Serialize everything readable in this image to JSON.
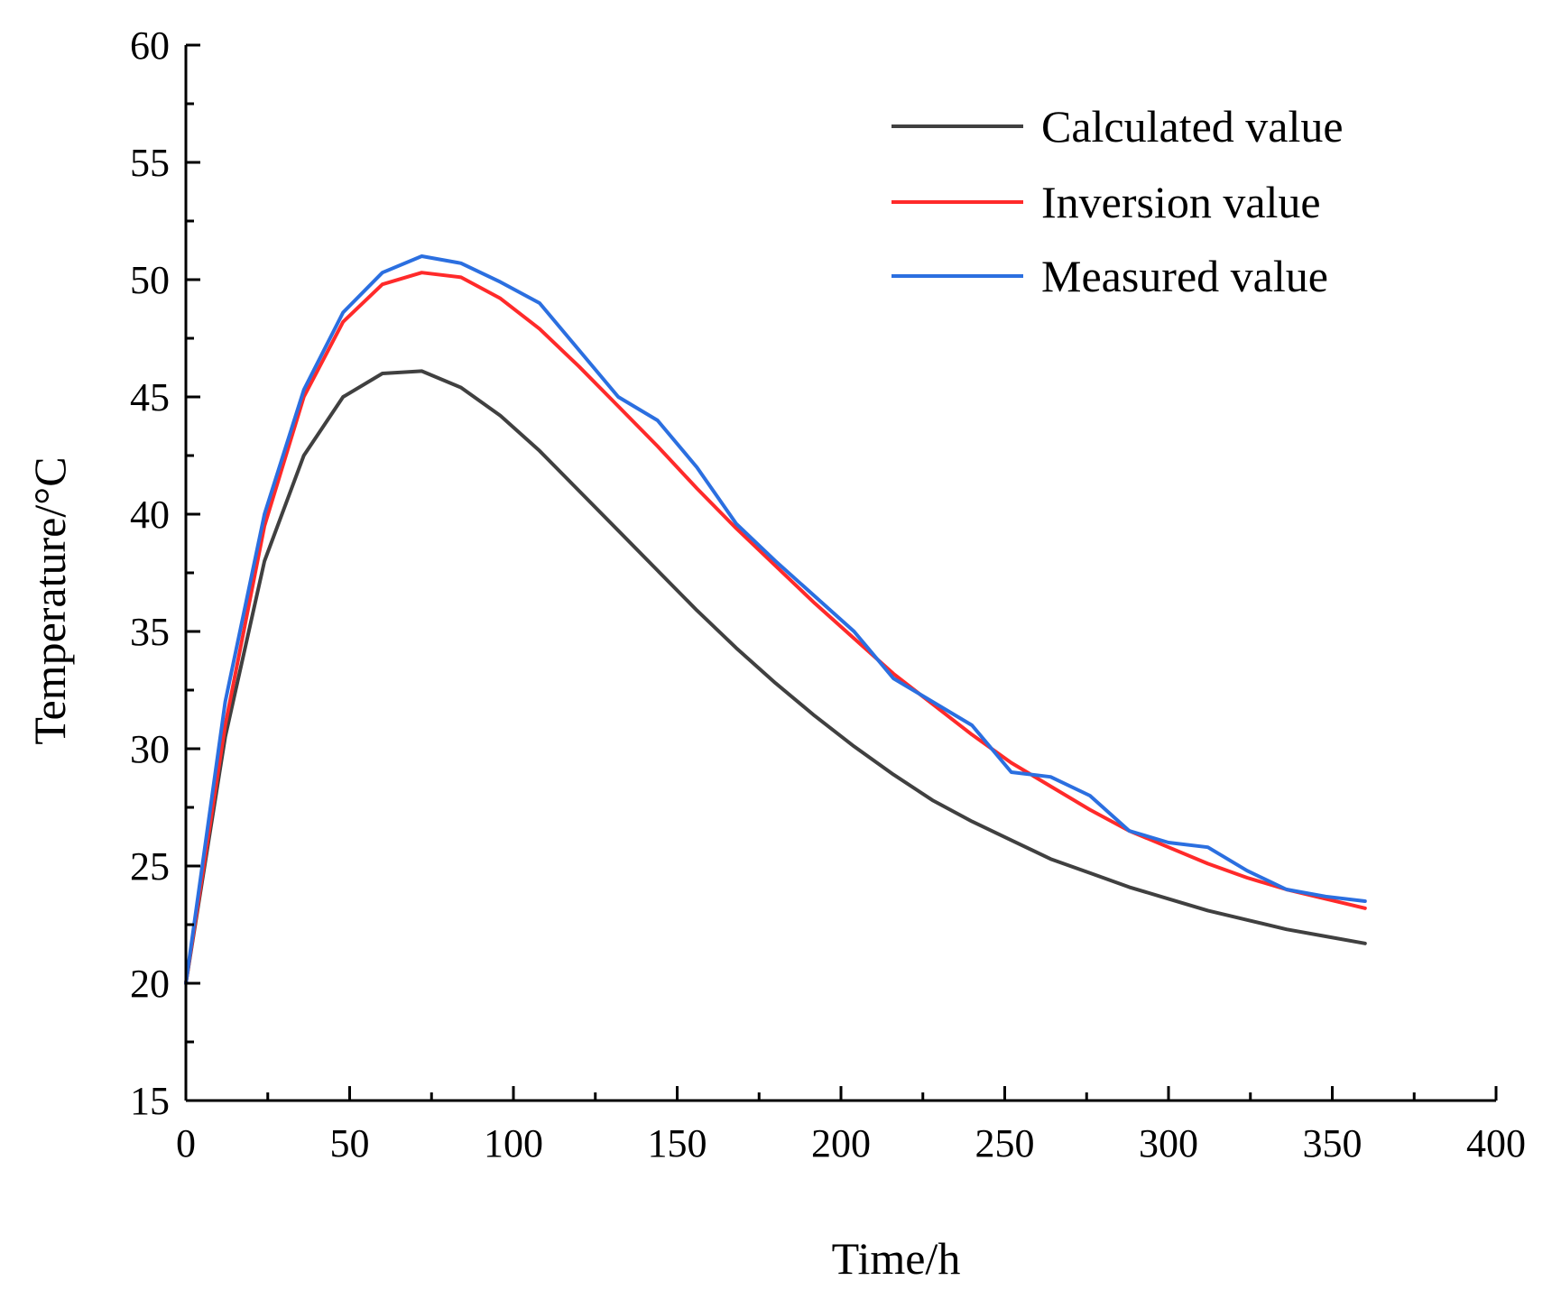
{
  "chart_data": {
    "type": "line",
    "xlabel": "Time/h",
    "ylabel": "Temperature/°C",
    "xlim": [
      0,
      400
    ],
    "ylim": [
      15,
      60
    ],
    "xticks": [
      0,
      50,
      100,
      150,
      200,
      250,
      300,
      350,
      400
    ],
    "yticks": [
      15,
      20,
      25,
      30,
      35,
      40,
      45,
      50,
      55,
      60
    ],
    "x_tick_labels": [
      "0",
      "50",
      "100",
      "150",
      "200",
      "250",
      "300",
      "350",
      "400"
    ],
    "y_tick_labels": [
      "15",
      "20",
      "25",
      "30",
      "35",
      "40",
      "45",
      "50",
      "55",
      "60"
    ],
    "grid": false,
    "legend_position": "top-right",
    "series": [
      {
        "name": "Calculated value",
        "color": "#404040",
        "x": [
          0,
          12,
          24,
          36,
          48,
          60,
          72,
          84,
          96,
          108,
          120,
          132,
          144,
          156,
          168,
          180,
          192,
          204,
          216,
          228,
          240,
          252,
          264,
          276,
          288,
          300,
          312,
          324,
          336,
          348,
          360
        ],
        "y": [
          20,
          30.5,
          38,
          42.5,
          45,
          46,
          46.1,
          45.4,
          44.2,
          42.7,
          41,
          39.3,
          37.6,
          35.9,
          34.3,
          32.8,
          31.4,
          30.1,
          28.9,
          27.8,
          26.9,
          26.1,
          25.3,
          24.7,
          24.1,
          23.6,
          23.1,
          22.7,
          22.3,
          22,
          21.7
        ]
      },
      {
        "name": "Inversion value",
        "color": "#ff2a2a",
        "x": [
          0,
          12,
          24,
          36,
          48,
          60,
          72,
          84,
          96,
          108,
          120,
          132,
          144,
          156,
          168,
          180,
          192,
          204,
          216,
          228,
          240,
          252,
          264,
          276,
          288,
          300,
          312,
          324,
          336,
          348,
          360
        ],
        "y": [
          20,
          31,
          39.5,
          45,
          48.2,
          49.8,
          50.3,
          50.1,
          49.2,
          47.9,
          46.3,
          44.6,
          42.9,
          41.1,
          39.4,
          37.8,
          36.2,
          34.7,
          33.2,
          31.9,
          30.6,
          29.4,
          28.4,
          27.4,
          26.5,
          25.8,
          25.1,
          24.5,
          24,
          23.6,
          23.2
        ]
      },
      {
        "name": "Measured value",
        "color": "#2b6fe0",
        "x": [
          0,
          12,
          24,
          36,
          48,
          60,
          72,
          84,
          96,
          108,
          120,
          132,
          144,
          156,
          168,
          180,
          192,
          204,
          216,
          228,
          240,
          252,
          264,
          276,
          288,
          300,
          312,
          324,
          336,
          348,
          360
        ],
        "y": [
          20,
          32,
          40,
          45.3,
          48.6,
          50.3,
          51,
          50.7,
          49.9,
          49,
          47,
          45,
          44,
          42,
          39.6,
          38,
          36.5,
          35,
          33,
          32,
          31,
          29,
          28.8,
          28,
          26.5,
          26,
          25.8,
          24.8,
          24,
          23.7,
          23.5
        ]
      }
    ]
  }
}
